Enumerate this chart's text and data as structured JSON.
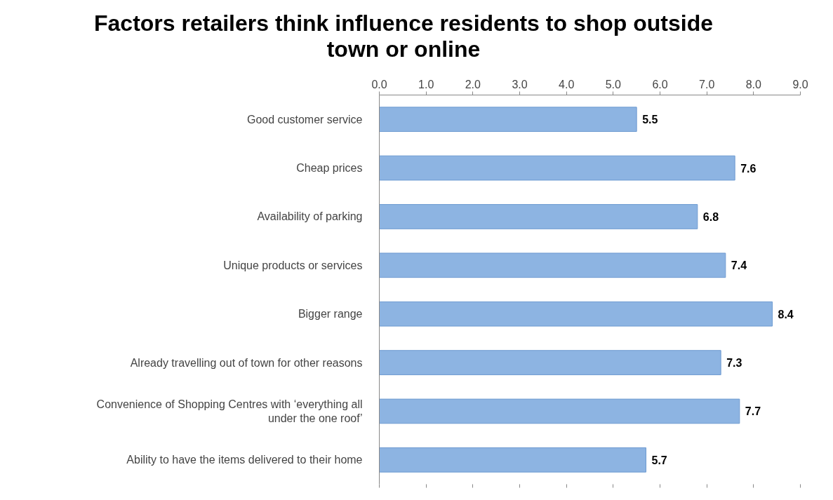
{
  "chart_data": {
    "type": "bar",
    "orientation": "horizontal",
    "title": "Factors retailers think influence residents to shop outside town or online",
    "categories": [
      "Good customer service",
      "Cheap prices",
      "Availability of parking",
      "Unique products or services",
      "Bigger range",
      "Already travelling out of town for other reasons",
      "Convenience of Shopping Centres with ‘everything all under the one roof’",
      "Ability to have the items delivered to their home"
    ],
    "values": [
      5.5,
      7.6,
      6.8,
      7.4,
      8.4,
      7.3,
      7.7,
      5.7
    ],
    "color": "#8db4e2",
    "xlim": [
      0,
      9
    ],
    "xticks": [
      {
        "value": 0,
        "label": "0.0"
      },
      {
        "value": 1,
        "label": "1.0"
      },
      {
        "value": 2,
        "label": "2.0"
      },
      {
        "value": 3,
        "label": "3.0"
      },
      {
        "value": 4,
        "label": "4.0"
      },
      {
        "value": 5,
        "label": "5.0"
      },
      {
        "value": 6,
        "label": "6.0"
      },
      {
        "value": 7,
        "label": "7.0"
      },
      {
        "value": 8,
        "label": "8.0"
      },
      {
        "value": 9,
        "label": "9.0"
      }
    ],
    "grid": false,
    "data_labels": true
  }
}
